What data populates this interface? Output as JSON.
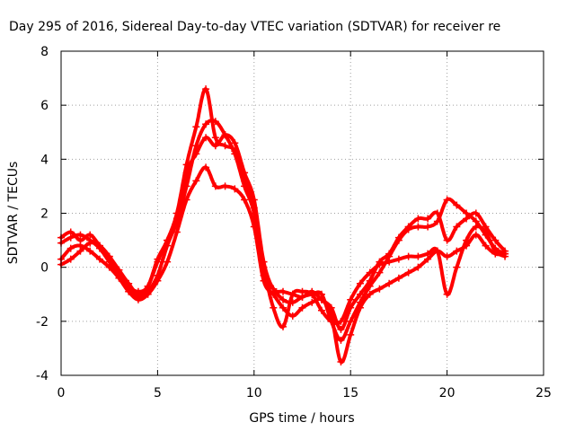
{
  "chart_data": {
    "type": "scatter",
    "title": "Day 295 of 2016, Sidereal Day-to-day VTEC variation (SDTVAR) for receiver re",
    "xlabel": "GPS time / hours",
    "ylabel": "SDTVAR / TECUs",
    "xlim": [
      0,
      25
    ],
    "ylim": [
      -4,
      8
    ],
    "xticks": [
      0,
      5,
      10,
      15,
      20,
      25
    ],
    "yticks": [
      -4,
      -2,
      0,
      2,
      4,
      6,
      8
    ],
    "grid": true,
    "marker": "plus",
    "color": "#ff0000",
    "series": [
      {
        "x": [
          0,
          0.5,
          1,
          1.5,
          2,
          2.5,
          3,
          3.5,
          4,
          4.5,
          5,
          5.5,
          6,
          6.5,
          7,
          7.5,
          8,
          8.5,
          9,
          9.5,
          10,
          10.5,
          11,
          11.5,
          12,
          12.5,
          13,
          13.5,
          14,
          14.5,
          15,
          15.5,
          16,
          16.5,
          17,
          17.5,
          18,
          18.5,
          19,
          19.5,
          20,
          20.5,
          21,
          21.5,
          22,
          22.5,
          23
        ],
        "y": [
          1.1,
          1.3,
          1.0,
          1.2,
          0.8,
          0.4,
          -0.1,
          -0.6,
          -1.0,
          -0.7,
          0.2,
          1.0,
          1.8,
          3.5,
          4.2,
          4.8,
          4.5,
          4.9,
          4.6,
          3.5,
          2.5,
          0.2,
          -0.8,
          -0.9,
          -1.0,
          -1.1,
          -0.9,
          -1.2,
          -1.5,
          -2.3,
          -1.5,
          -1.0,
          -0.5,
          0.2,
          0.5,
          1.1,
          1.5,
          1.8,
          1.8,
          2.0,
          1.0,
          1.5,
          1.8,
          2.0,
          1.5,
          1.0,
          0.6
        ]
      },
      {
        "x": [
          0,
          0.5,
          1,
          1.5,
          2,
          2.5,
          3,
          3.5,
          4,
          4.5,
          5,
          5.5,
          6,
          6.5,
          7,
          7.5,
          8,
          8.5,
          9,
          9.5,
          10,
          10.5,
          11,
          11.5,
          12,
          12.5,
          13,
          13.5,
          14,
          14.5,
          15,
          15.5,
          16,
          16.5,
          17,
          17.5,
          18,
          18.5,
          19,
          19.5,
          20,
          20.5,
          21,
          21.5,
          22,
          22.5,
          23
        ],
        "y": [
          0.9,
          1.1,
          1.2,
          1.0,
          0.7,
          0.2,
          -0.3,
          -0.8,
          -1.1,
          -0.9,
          -0.3,
          0.8,
          1.7,
          3.0,
          4.5,
          5.3,
          5.4,
          4.9,
          4.2,
          3.0,
          2.0,
          -0.3,
          -0.8,
          -1.2,
          -1.3,
          -1.1,
          -1.0,
          -1.0,
          -2.0,
          -2.7,
          -2.0,
          -1.3,
          -0.7,
          -0.2,
          0.4,
          1.0,
          1.4,
          1.5,
          1.5,
          1.7,
          2.5,
          2.3,
          2.0,
          1.7,
          1.2,
          0.7,
          0.5
        ]
      },
      {
        "x": [
          0,
          0.5,
          1,
          1.5,
          2,
          2.5,
          3,
          3.5,
          4,
          4.5,
          5,
          5.5,
          6,
          6.5,
          7,
          7.5,
          8,
          8.5,
          9,
          9.5,
          10,
          10.5,
          11,
          11.5,
          12,
          12.5,
          13,
          13.5,
          14,
          14.5,
          15,
          15.5,
          16,
          16.5,
          17,
          17.5,
          18,
          18.5,
          19,
          19.5,
          20,
          20.5,
          21,
          21.5,
          22,
          22.5,
          23
        ],
        "y": [
          0.3,
          0.7,
          0.8,
          0.6,
          0.3,
          0.0,
          -0.4,
          -0.9,
          -1.2,
          -1.0,
          -0.5,
          0.2,
          1.3,
          2.5,
          3.2,
          3.7,
          3.0,
          3.0,
          2.9,
          2.5,
          1.5,
          -0.5,
          -1.0,
          -1.5,
          -1.8,
          -1.5,
          -1.3,
          -1.2,
          -1.8,
          -3.5,
          -2.5,
          -1.5,
          -1.0,
          -0.8,
          -0.6,
          -0.4,
          -0.2,
          0.0,
          0.3,
          0.6,
          0.4,
          0.6,
          0.8,
          1.2,
          0.8,
          0.5,
          0.5
        ]
      },
      {
        "x": [
          0,
          0.5,
          1,
          1.5,
          2,
          2.5,
          3,
          3.5,
          4,
          4.5,
          5,
          5.5,
          6,
          6.5,
          7,
          7.5,
          8,
          8.5,
          9,
          9.5,
          10,
          10.5,
          11,
          11.5,
          12,
          12.5,
          13,
          13.5,
          14,
          14.5,
          15,
          15.5,
          16,
          16.5,
          17,
          17.5,
          18,
          18.5,
          19,
          19.5,
          20,
          20.5,
          21,
          21.5,
          22,
          22.5,
          23
        ],
        "y": [
          0.1,
          0.3,
          0.6,
          0.9,
          0.8,
          0.4,
          -0.2,
          -0.7,
          -0.9,
          -0.7,
          0.3,
          1.0,
          2.0,
          3.8,
          5.2,
          6.6,
          4.8,
          4.5,
          4.3,
          3.2,
          2.2,
          0.0,
          -1.5,
          -2.2,
          -1.0,
          -0.9,
          -1.0,
          -1.6,
          -2.0,
          -2.0,
          -1.2,
          -0.6,
          -0.2,
          0.1,
          0.2,
          0.3,
          0.4,
          0.4,
          0.5,
          0.6,
          -1.0,
          0.0,
          1.0,
          1.5,
          1.3,
          0.6,
          0.4
        ]
      }
    ]
  }
}
